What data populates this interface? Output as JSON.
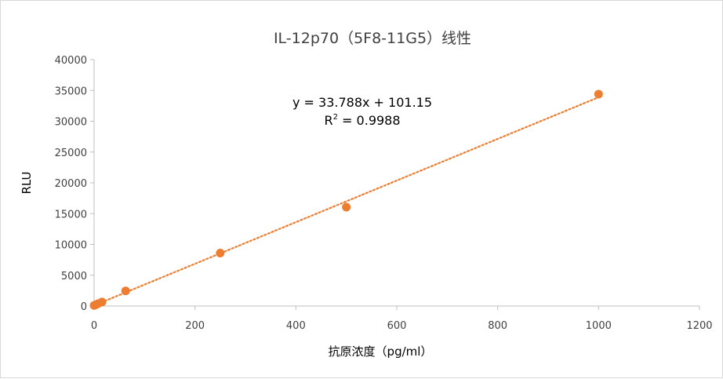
{
  "chart_data": {
    "type": "scatter",
    "title": "IL-12p70（5F8-11G5）线性",
    "xlabel": "抗原浓度（pg/ml）",
    "ylabel": "RLU",
    "xlim": [
      0,
      1200
    ],
    "ylim": [
      0,
      40000
    ],
    "x_ticks": [
      "0",
      "200",
      "400",
      "600",
      "800",
      "1000",
      "1200"
    ],
    "y_ticks": [
      "0",
      "5000",
      "10000",
      "15000",
      "20000",
      "25000",
      "30000",
      "35000",
      "40000"
    ],
    "grid": false,
    "marker_color": "#ED7D31",
    "trendline_color": "#ED7D31",
    "points": [
      {
        "x": 0,
        "y": 100
      },
      {
        "x": 3.9,
        "y": 220
      },
      {
        "x": 7.8,
        "y": 380
      },
      {
        "x": 15.6,
        "y": 650
      },
      {
        "x": 62.5,
        "y": 2450
      },
      {
        "x": 250,
        "y": 8600
      },
      {
        "x": 500,
        "y": 16050
      },
      {
        "x": 1000,
        "y": 34400
      }
    ],
    "trendline": {
      "slope": 33.788,
      "intercept": 101.15
    },
    "equation_text": "y = 33.788x + 101.15",
    "r2_prefix": "R",
    "r2_sup": "2",
    "r2_value": " = 0.9988"
  }
}
